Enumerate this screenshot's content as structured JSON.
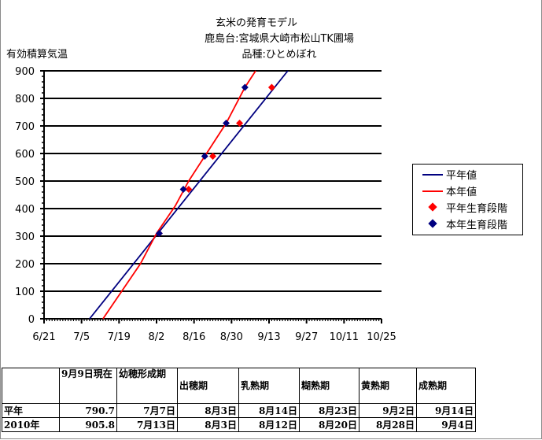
{
  "chart_data": {
    "type": "line",
    "title": [
      "玄米の発育モデル",
      "鹿島台:宮城県大崎市松山TK圃場",
      "品種:ひとめぼれ"
    ],
    "ylabel": "有効積算気温",
    "xlabel": "",
    "ylim": [
      0,
      900
    ],
    "yticks": [
      "0",
      "100",
      "200",
      "300",
      "400",
      "500",
      "600",
      "700",
      "800",
      "900"
    ],
    "xticks": [
      "6/21",
      "7/5",
      "7/19",
      "8/2",
      "8/16",
      "8/30",
      "9/13",
      "9/27",
      "10/11",
      "10/25"
    ],
    "xlim": [
      "6/21",
      "10/25"
    ],
    "grid": "horizontal",
    "legend_position": "right",
    "series": [
      {
        "name": "平年値",
        "kind": "line",
        "color": "#000080",
        "points": [
          [
            "7/8",
            0
          ],
          [
            "9/20",
            900
          ]
        ]
      },
      {
        "name": "本年値",
        "kind": "line",
        "color": "#ff0000",
        "points": [
          [
            "7/13",
            0
          ],
          [
            "7/20",
            100
          ],
          [
            "7/27",
            200
          ],
          [
            "8/2",
            310
          ],
          [
            "8/9",
            410
          ],
          [
            "8/14",
            500
          ],
          [
            "8/20",
            590
          ],
          [
            "8/28",
            710
          ],
          [
            "9/4",
            840
          ],
          [
            "9/8",
            900
          ]
        ]
      },
      {
        "name": "平年生育段階",
        "kind": "marker",
        "color": "#ff0000",
        "points": [
          [
            "8/3",
            310
          ],
          [
            "8/14",
            470
          ],
          [
            "8/23",
            590
          ],
          [
            "9/2",
            710
          ],
          [
            "9/14",
            840
          ]
        ]
      },
      {
        "name": "本年生育段階",
        "kind": "marker",
        "color": "#000080",
        "points": [
          [
            "8/3",
            310
          ],
          [
            "8/12",
            470
          ],
          [
            "8/20",
            590
          ],
          [
            "8/28",
            710
          ],
          [
            "9/4",
            840
          ]
        ]
      }
    ]
  },
  "table": {
    "headers": [
      "",
      "9月9日現在",
      "幼穂形成期",
      "出穂期",
      "乳熟期",
      "糊熟期",
      "黄熟期",
      "成熟期"
    ],
    "rows": [
      [
        "平年",
        "790.7",
        "7月7日",
        "8月3日",
        "8月14日",
        "8月23日",
        "9月2日",
        "9月14日"
      ],
      [
        "2010年",
        "905.8",
        "7月13日",
        "8月3日",
        "8月12日",
        "8月20日",
        "8月28日",
        "9月4日"
      ]
    ]
  }
}
